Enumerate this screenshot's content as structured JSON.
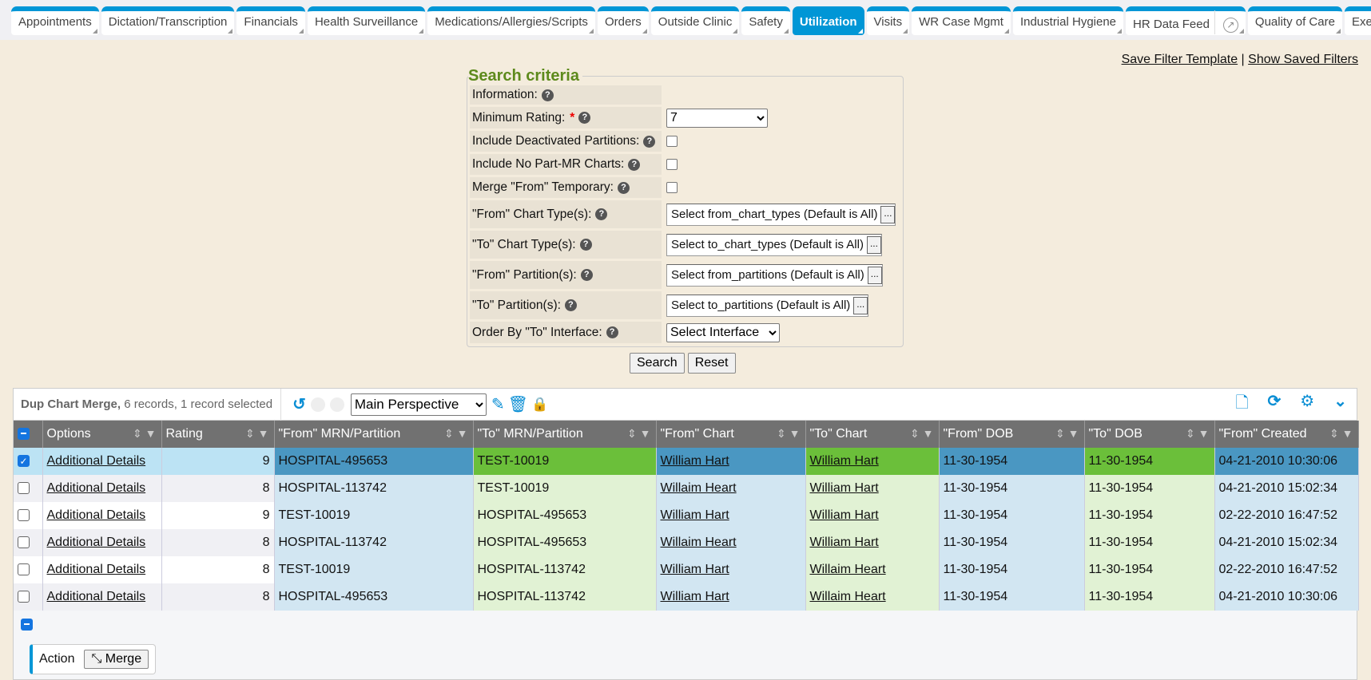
{
  "tabs": [
    {
      "label": "Appointments"
    },
    {
      "label": "Dictation/Transcription"
    },
    {
      "label": "Financials"
    },
    {
      "label": "Health Surveillance"
    },
    {
      "label": "Medications/Allergies/Scripts"
    },
    {
      "label": "Orders"
    },
    {
      "label": "Outside Clinic"
    },
    {
      "label": "Safety"
    },
    {
      "label": "Utilization",
      "active": true
    },
    {
      "label": "Visits"
    },
    {
      "label": "WR Case Mgmt"
    },
    {
      "label": "Industrial Hygiene"
    },
    {
      "label": "HR Data Feed"
    },
    {
      "label": "Quality of Care"
    },
    {
      "label": "Exec"
    }
  ],
  "links": {
    "save": "Save Filter Template",
    "sep": " | ",
    "show": "Show Saved Filters"
  },
  "search": {
    "legend": "Search criteria",
    "information": "Information:",
    "min_rating": "Minimum Rating:",
    "min_rating_value": "7",
    "required": "*",
    "deactivated": "Include Deactivated Partitions:",
    "no_part": "Include No Part-MR Charts:",
    "merge_temp": "Merge \"From\" Temporary:",
    "from_type": "\"From\" Chart Type(s):",
    "from_type_value": "Select from_chart_types (Default is All)",
    "to_type": "\"To\" Chart Type(s):",
    "to_type_value": "Select to_chart_types (Default is All)",
    "from_part": "\"From\" Partition(s):",
    "from_part_value": "Select from_partitions (Default is All)",
    "to_part": "\"To\" Partition(s):",
    "to_part_value": "Select to_partitions (Default is All)",
    "order": "Order By \"To\" Interface:",
    "order_value": "Select Interface",
    "dots": "...",
    "search_btn": "Search",
    "reset_btn": "Reset"
  },
  "grid": {
    "title": "Dup Chart Merge,",
    "summary": "6 records, 1 record selected",
    "perspective": "Main Perspective",
    "columns": [
      "Options",
      "Rating",
      "\"From\" MRN/Partition",
      "\"To\" MRN/Partition",
      "\"From\" Chart",
      "\"To\" Chart",
      "\"From\" DOB",
      "\"To\" DOB",
      "\"From\" Created"
    ],
    "rows": [
      {
        "selected": true,
        "opt": "Additional Details",
        "rating": "9",
        "from_mrn": "HOSPITAL-495653",
        "to_mrn": "TEST-10019",
        "from_chart": "William Hart",
        "to_chart": "William Hart",
        "from_dob": "11-30-1954",
        "to_dob": "11-30-1954",
        "from_created": "04-21-2010 10:30:06"
      },
      {
        "selected": false,
        "opt": "Additional Details",
        "rating": "8",
        "from_mrn": "HOSPITAL-113742",
        "to_mrn": "TEST-10019",
        "from_chart": "Willaim Heart",
        "to_chart": "William Hart",
        "from_dob": "11-30-1954",
        "to_dob": "11-30-1954",
        "from_created": "04-21-2010 15:02:34"
      },
      {
        "selected": false,
        "opt": "Additional Details",
        "rating": "9",
        "from_mrn": "TEST-10019",
        "to_mrn": "HOSPITAL-495653",
        "from_chart": "William Hart",
        "to_chart": "William Hart",
        "from_dob": "11-30-1954",
        "to_dob": "11-30-1954",
        "from_created": "02-22-2010 16:47:52"
      },
      {
        "selected": false,
        "opt": "Additional Details",
        "rating": "8",
        "from_mrn": "HOSPITAL-113742",
        "to_mrn": "HOSPITAL-495653",
        "from_chart": "Willaim Heart",
        "to_chart": "William Hart",
        "from_dob": "11-30-1954",
        "to_dob": "11-30-1954",
        "from_created": "04-21-2010 15:02:34"
      },
      {
        "selected": false,
        "opt": "Additional Details",
        "rating": "8",
        "from_mrn": "TEST-10019",
        "to_mrn": "HOSPITAL-113742",
        "from_chart": "William Hart",
        "to_chart": "Willaim Heart",
        "from_dob": "11-30-1954",
        "to_dob": "11-30-1954",
        "from_created": "02-22-2010 16:47:52"
      },
      {
        "selected": false,
        "opt": "Additional Details",
        "rating": "8",
        "from_mrn": "HOSPITAL-495653",
        "to_mrn": "HOSPITAL-113742",
        "from_chart": "William Hart",
        "to_chart": "Willaim Heart",
        "from_dob": "11-30-1954",
        "to_dob": "11-30-1954",
        "from_created": "04-21-2010 10:30:06"
      }
    ],
    "action_label": "Action",
    "merge_label": "Merge"
  },
  "colors": {
    "accent": "#0096d6",
    "from_cell": "#d2e6f2",
    "to_cell": "#e1f2d4",
    "from_selected": "#4a97c2",
    "to_selected": "#6bbf3a",
    "legend": "#5d8a1c"
  }
}
